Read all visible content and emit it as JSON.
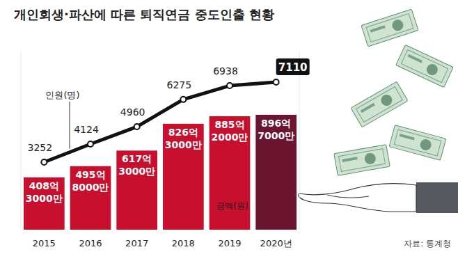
{
  "chart_data": {
    "type": "bar",
    "title": "개인회생·파산에 따른 퇴직연금 중도인출 현황",
    "categories": [
      "2015",
      "2016",
      "2017",
      "2018",
      "2019",
      "2020년"
    ],
    "series": [
      {
        "name": "금액(원)",
        "type": "bar",
        "values": [
          40830000000,
          49580000000,
          61730000000,
          82630000000,
          88520000000,
          89670000000
        ],
        "value_labels": [
          "408억 3000만",
          "495억 8000만",
          "617억 3000만",
          "826억 3000만",
          "885억 2000만",
          "896억 7000만"
        ],
        "colors": [
          "#c8102e",
          "#c8102e",
          "#c8102e",
          "#c8102e",
          "#c8102e",
          "#6b1530"
        ]
      },
      {
        "name": "인원(명)",
        "type": "line",
        "axis": "y2",
        "color": "#111111",
        "marker": "circle",
        "values": [
          3252,
          4124,
          4960,
          6275,
          6938,
          7110
        ]
      }
    ],
    "ylim": [
      0,
      138500000000
    ],
    "y2lim": [
      0,
      8550
    ],
    "data_labels": true,
    "tick_labels": false,
    "source": "자료: 통계청"
  }
}
